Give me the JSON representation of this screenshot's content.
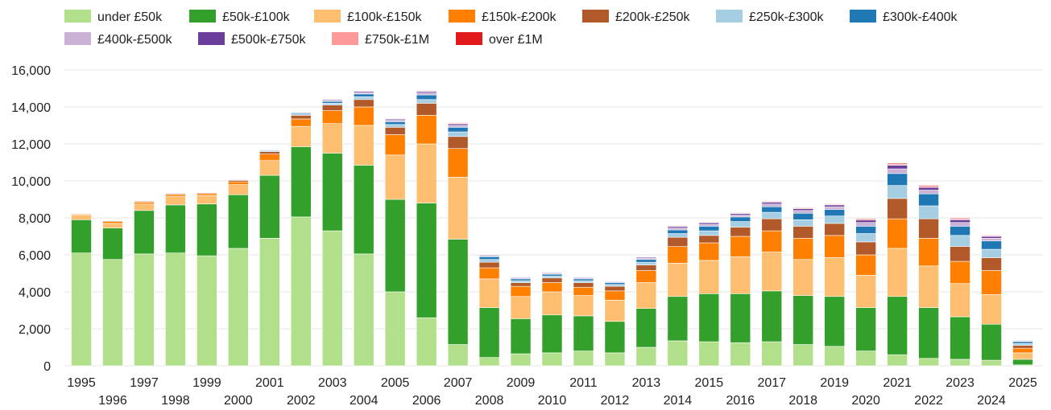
{
  "chart_data": {
    "type": "bar",
    "stacked": true,
    "title": "",
    "xlabel": "",
    "ylabel": "",
    "ylim": [
      0,
      16000
    ],
    "yticks": [
      "0",
      "2,000",
      "4,000",
      "6,000",
      "8,000",
      "10,000",
      "12,000",
      "14,000",
      "16,000"
    ],
    "grid": true,
    "legend_position": "top",
    "categories": [
      "1995",
      "1996",
      "1997",
      "1998",
      "1999",
      "2000",
      "2001",
      "2002",
      "2003",
      "2004",
      "2005",
      "2006",
      "2007",
      "2008",
      "2009",
      "2010",
      "2011",
      "2012",
      "2013",
      "2014",
      "2015",
      "2016",
      "2017",
      "2018",
      "2019",
      "2020",
      "2021",
      "2022",
      "2023",
      "2024",
      "2025"
    ],
    "series": [
      {
        "name": "under £50k",
        "color": "#b2df8a",
        "values": [
          6100,
          5750,
          6050,
          6100,
          5950,
          6350,
          6900,
          8050,
          7300,
          6050,
          4000,
          2600,
          1150,
          450,
          650,
          700,
          800,
          700,
          1000,
          1350,
          1300,
          1250,
          1300,
          1150,
          1050,
          800,
          600,
          400,
          350,
          300,
          50
        ]
      },
      {
        "name": "£50k-£100k",
        "color": "#33a02c",
        "values": [
          1800,
          1700,
          2350,
          2600,
          2800,
          2900,
          3400,
          3800,
          4200,
          4800,
          5000,
          6200,
          5700,
          2700,
          1900,
          2050,
          1900,
          1700,
          2100,
          2400,
          2600,
          2650,
          2750,
          2650,
          2700,
          2350,
          3150,
          2750,
          2300,
          1950,
          300
        ]
      },
      {
        "name": "£100k-£150k",
        "color": "#fdbf6f",
        "values": [
          250,
          250,
          350,
          450,
          450,
          550,
          800,
          1100,
          1600,
          2150,
          2400,
          3200,
          3350,
          1550,
          1200,
          1250,
          1100,
          1150,
          1400,
          1800,
          1800,
          2000,
          2100,
          1950,
          2100,
          1750,
          2600,
          2250,
          1800,
          1600,
          350
        ]
      },
      {
        "name": "£150k-£200k",
        "color": "#ff7f00",
        "values": [
          50,
          100,
          100,
          100,
          100,
          150,
          350,
          400,
          700,
          1000,
          1100,
          1550,
          1550,
          600,
          550,
          500,
          450,
          500,
          650,
          900,
          950,
          1100,
          1150,
          1150,
          1200,
          1100,
          1600,
          1500,
          1200,
          1300,
          250
        ]
      },
      {
        "name": "£200k-£250k",
        "color": "#b15928",
        "values": [
          30,
          40,
          50,
          50,
          50,
          80,
          130,
          200,
          300,
          400,
          400,
          650,
          650,
          300,
          200,
          250,
          250,
          250,
          300,
          500,
          400,
          500,
          650,
          650,
          650,
          700,
          1100,
          1050,
          800,
          700,
          150
        ]
      },
      {
        "name": "£250k-£300k",
        "color": "#a6cee3",
        "values": [
          10,
          15,
          20,
          20,
          20,
          30,
          50,
          70,
          100,
          150,
          150,
          200,
          250,
          150,
          100,
          100,
          100,
          100,
          150,
          200,
          250,
          300,
          350,
          350,
          400,
          450,
          700,
          700,
          600,
          450,
          100
        ]
      },
      {
        "name": "£300k-£400k",
        "color": "#1f78b4",
        "values": [
          10,
          10,
          15,
          20,
          20,
          30,
          40,
          60,
          100,
          150,
          150,
          250,
          250,
          150,
          100,
          100,
          100,
          100,
          150,
          200,
          250,
          250,
          300,
          350,
          350,
          400,
          650,
          650,
          500,
          450,
          100
        ]
      },
      {
        "name": "£400k-£500k",
        "color": "#cab2d6",
        "values": [
          10,
          10,
          10,
          10,
          10,
          15,
          20,
          30,
          50,
          80,
          80,
          100,
          100,
          50,
          50,
          50,
          50,
          50,
          80,
          100,
          100,
          100,
          150,
          150,
          150,
          200,
          250,
          200,
          200,
          150,
          50
        ]
      },
      {
        "name": "£500k-£750k",
        "color": "#6a3d9a",
        "values": [
          10,
          10,
          10,
          10,
          10,
          15,
          20,
          30,
          50,
          60,
          60,
          80,
          80,
          40,
          40,
          40,
          40,
          30,
          50,
          80,
          80,
          80,
          100,
          100,
          100,
          130,
          200,
          150,
          150,
          100,
          30
        ]
      },
      {
        "name": "£750k-£1M",
        "color": "#fb9a99",
        "values": [
          10,
          5,
          5,
          5,
          5,
          10,
          10,
          20,
          20,
          30,
          30,
          40,
          40,
          20,
          20,
          20,
          20,
          20,
          30,
          40,
          30,
          30,
          40,
          40,
          40,
          50,
          60,
          60,
          50,
          40,
          10
        ]
      },
      {
        "name": "over £1M",
        "color": "#e31a1c",
        "values": [
          10,
          5,
          5,
          5,
          5,
          10,
          10,
          20,
          20,
          20,
          20,
          30,
          30,
          20,
          20,
          20,
          20,
          20,
          20,
          30,
          30,
          30,
          30,
          30,
          30,
          40,
          50,
          50,
          40,
          30,
          10
        ]
      }
    ]
  }
}
